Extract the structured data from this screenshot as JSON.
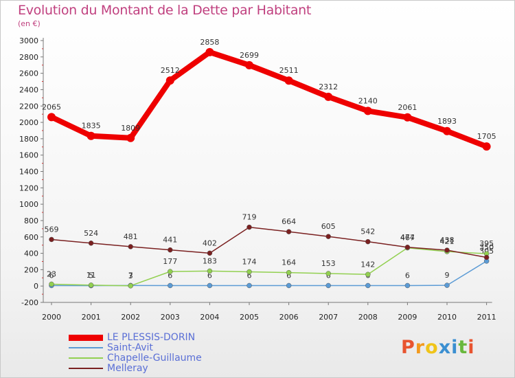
{
  "header": {
    "title": "Evolution du Montant de la Dette par Habitant",
    "unit": "(en €)"
  },
  "chart_data": {
    "type": "line",
    "x": [
      "2000",
      "2001",
      "2002",
      "2003",
      "2004",
      "2005",
      "2006",
      "2007",
      "2008",
      "2009",
      "2010",
      "2011"
    ],
    "ylim": [
      -200,
      3000
    ],
    "yticks": [
      -200,
      0,
      200,
      400,
      600,
      800,
      1000,
      1200,
      1400,
      1600,
      1800,
      2000,
      2200,
      2400,
      2600,
      2800,
      3000
    ],
    "grid": false,
    "legend_position": "bottom-left",
    "series": [
      {
        "name": "LE PLESSIS-DORIN",
        "color": "#ee0000",
        "values": [
          2065,
          1835,
          1809,
          2512,
          2858,
          2699,
          2511,
          2312,
          2140,
          2061,
          1893,
          1705
        ]
      },
      {
        "name": "Saint-Avit",
        "color": "#5b9bd5",
        "values": [
          6,
          5,
          7,
          6,
          6,
          6,
          6,
          6,
          6,
          6,
          9,
          305
        ]
      },
      {
        "name": "Chapelle-Guillaume",
        "color": "#92d050",
        "values": [
          23,
          11,
          3,
          177,
          183,
          174,
          164,
          153,
          142,
          467,
          421,
          395
        ]
      },
      {
        "name": "Melleray",
        "color": "#7a2020",
        "values": [
          569,
          524,
          481,
          441,
          402,
          719,
          664,
          605,
          542,
          474,
          438,
          350
        ]
      }
    ]
  },
  "legend": {
    "items": [
      {
        "label": "LE PLESSIS-DORIN",
        "color": "#ee0000"
      },
      {
        "label": "Saint-Avit",
        "color": "#5b9bd5"
      },
      {
        "label": "Chapelle-Guillaume",
        "color": "#92d050"
      },
      {
        "label": "Melleray",
        "color": "#7a2020"
      }
    ]
  },
  "logo": {
    "text": "Proxiti",
    "colors": [
      "#e8542f",
      "#f29a1e",
      "#f0c419",
      "#3b8fd1",
      "#3b8fd1",
      "#69b83d",
      "#e8542f"
    ]
  }
}
